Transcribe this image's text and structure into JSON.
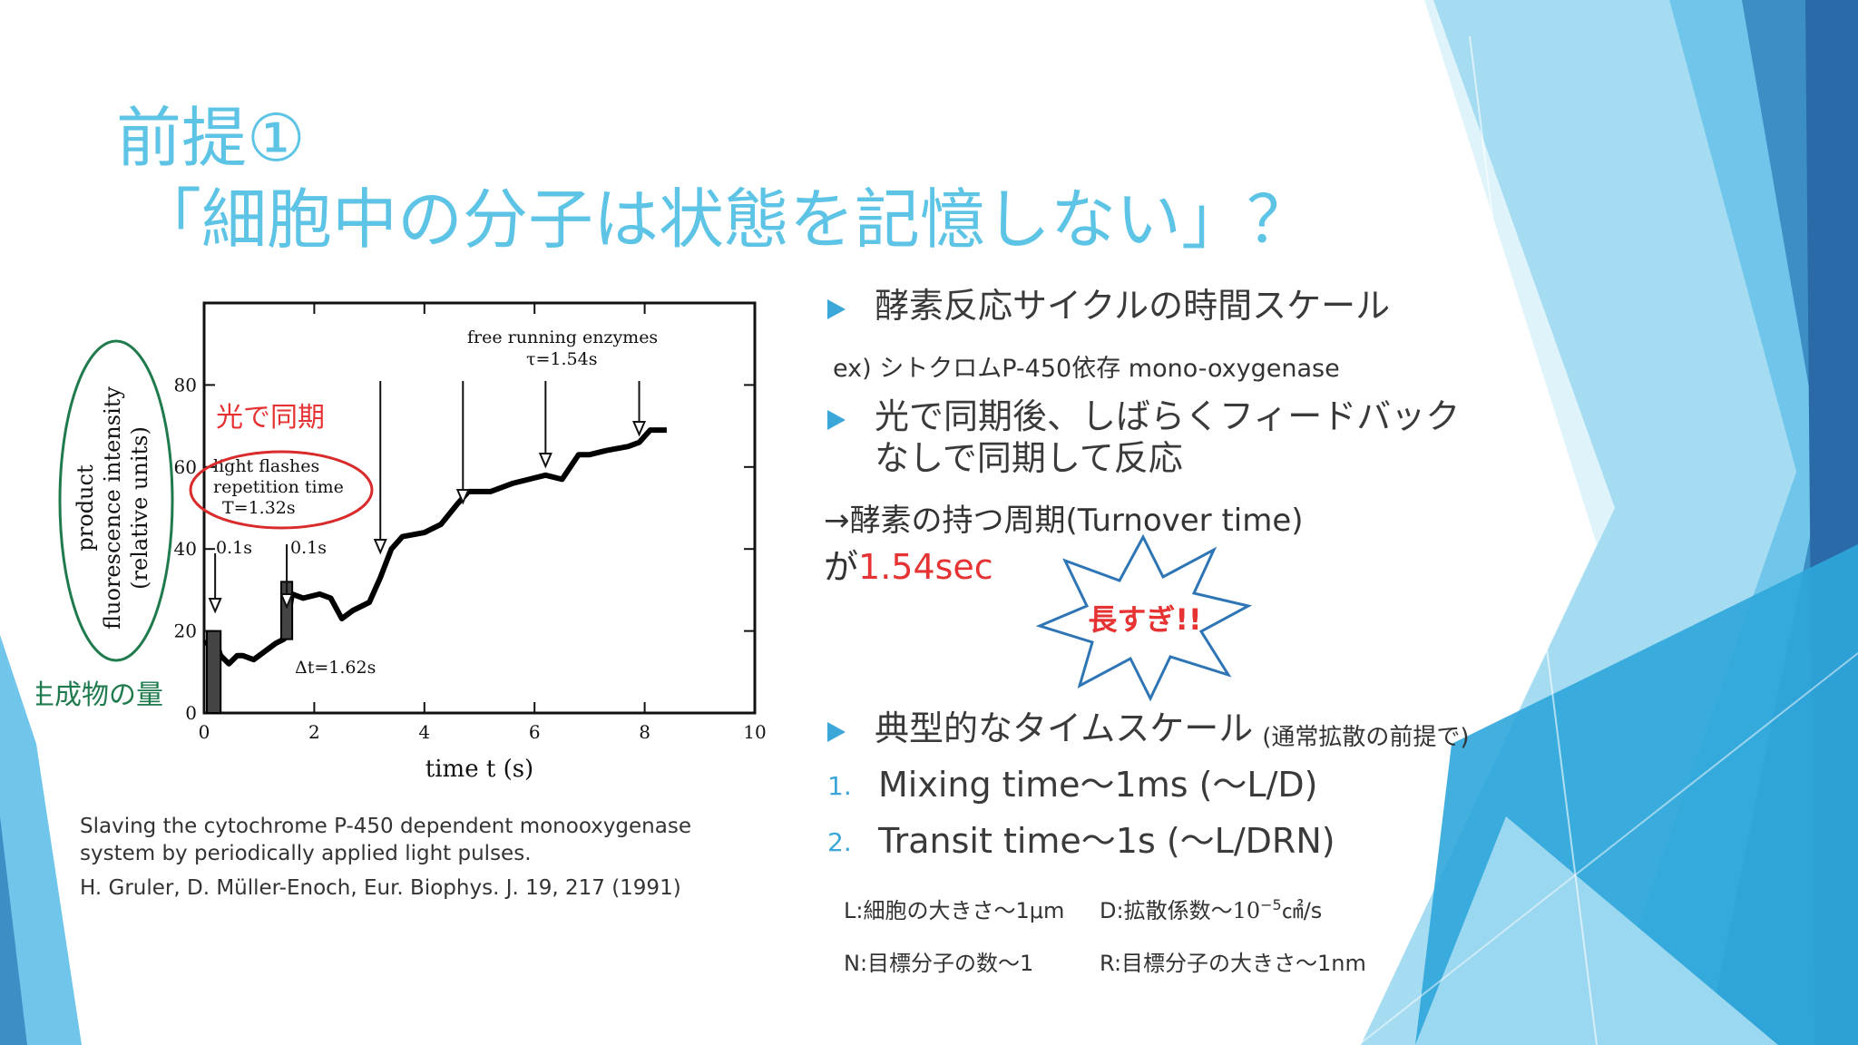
{
  "title": {
    "line1": "前提①",
    "line2": "「細胞中の分子は状態を記憶しない」？"
  },
  "bullets": {
    "b1": "酵素反応サイクルの時間スケール",
    "ex": "ex) シトクロムP-450依存 mono-oxygenase",
    "b2_line1": "光で同期後、しばらくフィードバック",
    "b2_line2": "なしで同期して反応",
    "arrow_line": "→酵素の持つ周期(Turnover time)",
    "ga": "が",
    "value": "1.54sec",
    "burst": "長すぎ!!",
    "b3": "典型的なタイムスケール",
    "b3_note": "(通常拡散の前提で)",
    "n1": "1.",
    "n1_text": "Mixing time～1ms (～L/D)",
    "n2": "2.",
    "n2_text": "Transit time～1s (～L/DRN)"
  },
  "definitions": {
    "L": "L:細胞の大きさ～1μm",
    "D_prefix": "D:拡散係数～",
    "D_base": "10",
    "D_exp": "−5",
    "D_suffix": "㎠/s",
    "N": "N:目標分子の数～1",
    "R": "R:目標分子の大きさ～1nm"
  },
  "caption": {
    "line1": "Slaving the cytochrome P-450 dependent monooxygenase",
    "line2": "system by periodically applied light pulses.",
    "line3": "H. Gruler, D. Müller-Enoch, Eur. Biophys. J. 19, 217 (1991)"
  },
  "chart_data": {
    "type": "line",
    "xlabel": "time  t  (s)",
    "ylabel": "product\nfluorescence intensity\n(relative units)",
    "xlim": [
      0,
      10
    ],
    "ylim": [
      0,
      100
    ],
    "x_ticks": [
      "0",
      "2",
      "4",
      "6",
      "8",
      "10"
    ],
    "y_ticks": [
      "0",
      "20",
      "40",
      "60",
      "80"
    ],
    "series": [
      {
        "x": [
          0.0,
          0.2,
          0.3,
          0.45,
          0.6,
          0.7,
          0.9,
          1.1,
          1.3,
          1.45,
          1.6,
          1.8,
          2.1,
          2.3,
          2.5,
          2.7,
          3.0,
          3.2,
          3.4,
          3.6,
          4.0,
          4.3,
          4.6,
          4.8,
          5.2,
          5.6,
          5.9,
          6.2,
          6.5,
          6.8,
          7.0,
          7.3,
          7.7,
          7.9,
          8.1,
          8.4
        ],
        "y": [
          17,
          18,
          14,
          12,
          14,
          14,
          13,
          15,
          17,
          18,
          29,
          28,
          29,
          28,
          23,
          25,
          27,
          33,
          40,
          43,
          44,
          46,
          51,
          54,
          54,
          56,
          57,
          58,
          57,
          63,
          63,
          64,
          65,
          66,
          69,
          69
        ]
      }
    ],
    "annotations": {
      "free_running": "free running enzymes",
      "tau": "τ=1.54s",
      "light_flashes": "light flashes",
      "repetition": "repetition time",
      "T": "T=1.32s",
      "pulse1": "0.1s",
      "pulse2": "0.1s",
      "delta_t": "Δt=1.62s",
      "sync_label": "光で同期",
      "product_label": "生成物の量"
    },
    "arrows_x": [
      0.2,
      1.5,
      3.2,
      4.7,
      6.2,
      7.9
    ]
  }
}
